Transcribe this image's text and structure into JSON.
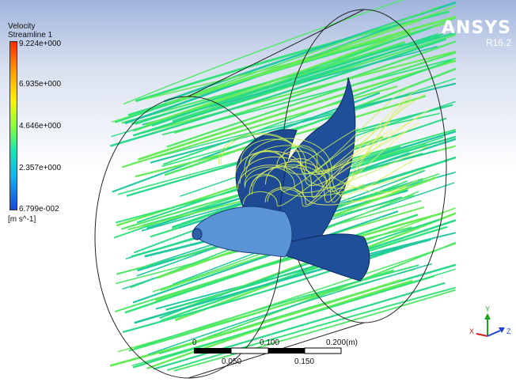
{
  "legend": {
    "variable": "Velocity",
    "object": "Streamline 1",
    "ticks": [
      "9.224e+000",
      "6.935e+000",
      "4.646e+000",
      "2.357e+000",
      "6.799e-002"
    ],
    "unit": "[m s^-1]"
  },
  "brand": {
    "name": "ANSYS",
    "version": "R16.2"
  },
  "scale_bar": {
    "top_labels": [
      "0",
      "0.100",
      "0.200",
      "(m)"
    ],
    "bottom_labels": [
      "0.050",
      "0.150"
    ]
  },
  "triad": {
    "x": "X",
    "y": "Y",
    "z": "Z",
    "colors": {
      "x": "#d81b1b",
      "y": "#1aa41a",
      "z": "#1b3fd8"
    }
  },
  "colors": {
    "background_top": "#9fb4dc",
    "blade": "#1f4f9a",
    "hub": "#5a93d6",
    "streamline_main": "#32e37a",
    "streamline_fast": "#c8f050"
  }
}
